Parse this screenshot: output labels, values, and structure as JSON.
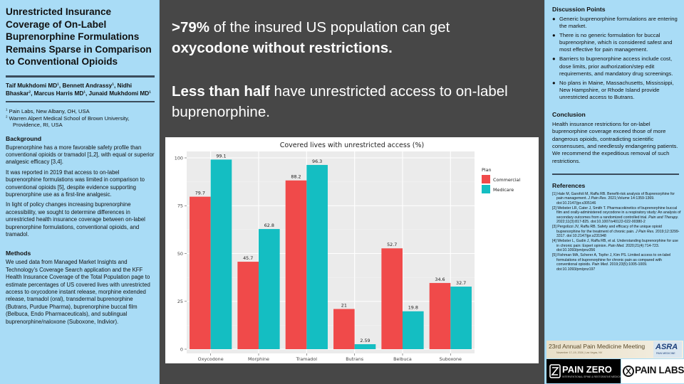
{
  "poster": {
    "title": "Unrestricted Insurance Coverage of On-Label Buprenorphine Formulations Remains Sparse in Comparison to Conventional Opioids",
    "authors": [
      {
        "name": "Taif Mukhdomi MD",
        "sup": "1",
        "sep": ", "
      },
      {
        "name": "Bennett Andrassy",
        "sup": "1",
        "sep": ", "
      },
      {
        "name": "Nidhi Bhaskar",
        "sup": "2",
        "sep": ", "
      },
      {
        "name": "Marcus Harris MD",
        "sup": "1",
        "sep": ", "
      },
      {
        "name": "Junaid Mukhdomi MD",
        "sup": "1",
        "sep": ""
      }
    ],
    "affiliations": [
      {
        "sup": "1",
        "text": "Pain Labs, New Albany, OH, USA"
      },
      {
        "sup": "2",
        "text": "Warren Alpert Medical School of Brown University, Providence, RI, USA"
      }
    ]
  },
  "background": {
    "heading": "Background",
    "paragraphs": [
      "Buprenorphine has a more favorable safety profile than conventional opioids or tramadol [1,2], with equal or superior analgesic efficacy [3,4].",
      "It was reported in 2019 that access to on-label buprenorphine formulations was limited in comparison to conventional opioids [5], despite evidence supporting buprenorphine use as a first-line analgesic.",
      "In light of policy changes increasing buprenorphine accessibility, we sought to determine differences in unrestricted health insurance coverage between on-label buprenorphine formulations, conventional opioids, and tramadol."
    ]
  },
  "methods": {
    "heading": "Methods",
    "text": "We used data from Managed Market Insights and Technology’s Coverage Search application and the KFF Health Insurance Coverage of the Total Population page to estimate percentages of US covered lives with unrestricted access to oxycodone instant release, morphine extended release, tramadol (oral), transdermal buprenorphine (Butrans, Purdue Pharma), buprenorphine buccal film (Belbuca, Endo Pharmaceuticals), and sublingual buprenorphine/naloxone (Suboxone, Indivior)."
  },
  "headline": {
    "line1_bold": ">79%",
    "line1_rest": " of the insured US population can get ",
    "line1_bold2": "oxycodone without restrictions.",
    "line2_bold": "Less than half",
    "line2_rest": " have unrestricted access to on-label buprenorphine."
  },
  "chart_data": {
    "type": "bar",
    "title": "Covered lives with unrestricted access (%)",
    "categories": [
      "Oxycodone",
      "Morphine",
      "Tramadol",
      "Butrans",
      "Belbuca",
      "Suboxone"
    ],
    "series": [
      {
        "name": "Commercial",
        "color": "#f04a4a",
        "values": [
          79.7,
          45.7,
          88.2,
          21,
          52.7,
          34.6
        ],
        "labels": [
          "79.7",
          "45.7",
          "88.2",
          "21",
          "52.7",
          "34.6"
        ]
      },
      {
        "name": "Medicare",
        "color": "#14bec2",
        "values": [
          99.1,
          62.8,
          96.3,
          2.59,
          19.8,
          32.7
        ],
        "labels": [
          "99.1",
          "62.8",
          "96.3",
          "2.59",
          "19.8",
          "32.7"
        ]
      }
    ],
    "ylim": [
      0,
      100
    ],
    "yticks": [
      0,
      25,
      50,
      75,
      100
    ],
    "ytick_labels": [
      "0",
      "25",
      "50",
      "75",
      "100"
    ],
    "legend_title": "Plan",
    "legend_position": "right",
    "grid": true,
    "xlabel": "",
    "ylabel": ""
  },
  "discussion": {
    "heading": "Discussion Points",
    "bullet": "●",
    "points": [
      "Generic buprenorphine formulations are entering the market.",
      "There is no generic formulation for buccal buprenorphine, which is considered safest and most effective for pain management.",
      "Barriers to buprenorphine access include cost, dose limits, prior authorization/step edit requirements, and mandatory drug screenings.",
      "No plans in Maine, Massachusetts, Mississippi, New Hampshire, or Rhode Island provide unrestricted access to Butrans."
    ]
  },
  "conclusion": {
    "heading": "Conclusion",
    "text": "Health insurance restrictions for on-label buprenorphine coverage exceed those of more dangerous opioids, contradicting scientific consensuses, and needlessly endangering patients. We recommend the expeditious removal of such restrictions."
  },
  "references": {
    "heading": "References",
    "items": [
      {
        "pre": "[1] Hale M, Garofoli M, Raffa RB. Benefit-risk analysis of Buprenorphine for pain management. ",
        "journal": "J Pain Res.",
        "post": " 2021;Volume 14:1359-1369. doi:10.2147/jpr.s305146"
      },
      {
        "pre": "[2] Webster LR, Cater J, Smith T. Pharmacokinetics of buprenorphine buccal film and orally-administered oxycodone in a respiratory study: An analysis of secondary outcomes from a randomized controlled trial. ",
        "journal": "Pain and Therapy.",
        "post": " 2022;11(3):817-825. doi:10.1007/s40122-022-00380-2"
      },
      {
        "pre": "[3] Pergolizzi JV, Raffa RB. Safety and efficacy of the unique opioid buprenorphine for the treatment of chronic pain. ",
        "journal": "J Pain Res.",
        "post": " 2019;12:3299-3317. doi:10.2147/jpr.s231948"
      },
      {
        "pre": "[4] Webster L, Gudin J, Raffa RB, et al. Understanding buprenorphine for use in chronic pain: Expert opinion. ",
        "journal": "Pain Med.",
        "post": " 2020;21(4):714-723. doi:10.1093/pm/pnz356"
      },
      {
        "pre": "[5] Fishman MA, Scherer A, Topfer J, Kim PS. Limited access to on-label formulations of buprenorphine for chronic pain as compared with conventional opioids. ",
        "journal": "Pain Med.",
        "post": " 2019;23(5):1005-1009. doi:10.1093/pm/pnz197"
      }
    ]
  },
  "logos": {
    "conference_name": "23rd Annual Pain Medicine Meeting",
    "conference_dates": "November 17–19, 2024 | Las Vegas, NV",
    "asra": "ASRA",
    "asra_sub": "PAIN MEDICINE",
    "painzero": "PAIN ZERO",
    "painzero_sub": "INTERVENTIONAL SPINE & RESTORATIVE MEDICINE",
    "painlabs": "PAIN LABS"
  }
}
